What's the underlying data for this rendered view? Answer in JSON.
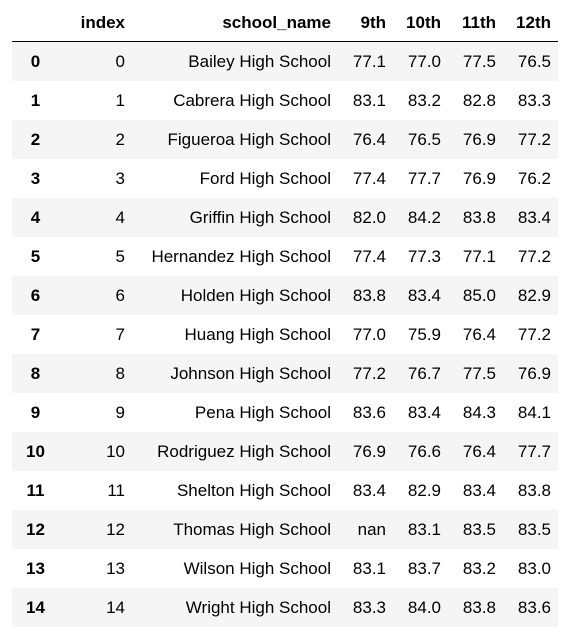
{
  "table": {
    "columns": [
      "",
      "index",
      "school_name",
      "9th",
      "10th",
      "11th",
      "12th"
    ],
    "rows": [
      {
        "label": "0",
        "cells": [
          "0",
          "Bailey High School",
          "77.1",
          "77.0",
          "77.5",
          "76.5"
        ]
      },
      {
        "label": "1",
        "cells": [
          "1",
          "Cabrera High School",
          "83.1",
          "83.2",
          "82.8",
          "83.3"
        ]
      },
      {
        "label": "2",
        "cells": [
          "2",
          "Figueroa High School",
          "76.4",
          "76.5",
          "76.9",
          "77.2"
        ]
      },
      {
        "label": "3",
        "cells": [
          "3",
          "Ford High School",
          "77.4",
          "77.7",
          "76.9",
          "76.2"
        ]
      },
      {
        "label": "4",
        "cells": [
          "4",
          "Griffin High School",
          "82.0",
          "84.2",
          "83.8",
          "83.4"
        ]
      },
      {
        "label": "5",
        "cells": [
          "5",
          "Hernandez High School",
          "77.4",
          "77.3",
          "77.1",
          "77.2"
        ]
      },
      {
        "label": "6",
        "cells": [
          "6",
          "Holden High School",
          "83.8",
          "83.4",
          "85.0",
          "82.9"
        ]
      },
      {
        "label": "7",
        "cells": [
          "7",
          "Huang High School",
          "77.0",
          "75.9",
          "76.4",
          "77.2"
        ]
      },
      {
        "label": "8",
        "cells": [
          "8",
          "Johnson High School",
          "77.2",
          "76.7",
          "77.5",
          "76.9"
        ]
      },
      {
        "label": "9",
        "cells": [
          "9",
          "Pena High School",
          "83.6",
          "83.4",
          "84.3",
          "84.1"
        ]
      },
      {
        "label": "10",
        "cells": [
          "10",
          "Rodriguez High School",
          "76.9",
          "76.6",
          "76.4",
          "77.7"
        ]
      },
      {
        "label": "11",
        "cells": [
          "11",
          "Shelton High School",
          "83.4",
          "82.9",
          "83.4",
          "83.8"
        ]
      },
      {
        "label": "12",
        "cells": [
          "12",
          "Thomas High School",
          "nan",
          "83.1",
          "83.5",
          "83.5"
        ]
      },
      {
        "label": "13",
        "cells": [
          "13",
          "Wilson High School",
          "83.1",
          "83.7",
          "83.2",
          "83.0"
        ]
      },
      {
        "label": "14",
        "cells": [
          "14",
          "Wright High School",
          "83.3",
          "84.0",
          "83.8",
          "83.6"
        ]
      }
    ]
  }
}
